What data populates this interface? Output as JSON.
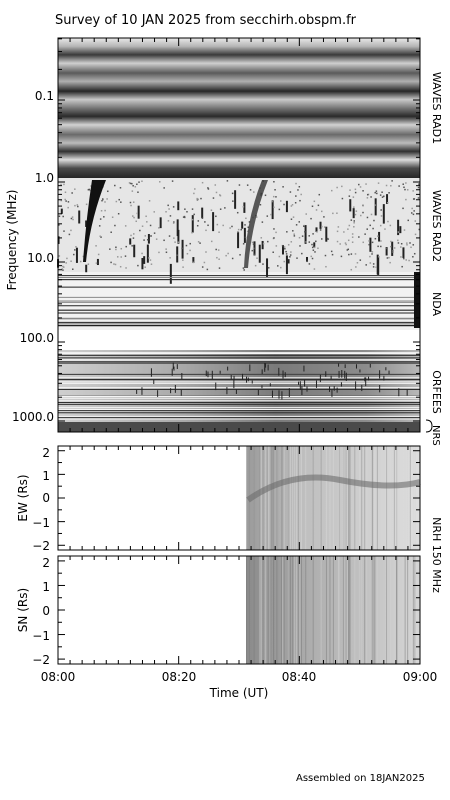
{
  "chart_data": {
    "type": "heatmap",
    "title": "Survey of 10 JAN 2025 from secchirh.obspm.fr",
    "footer": "Assembled on 18JAN2025",
    "xlabel": "Time (UT)",
    "x_ticks": [
      "08:00",
      "08:20",
      "08:40",
      "09:00"
    ],
    "x_range": [
      "08:00",
      "09:00"
    ],
    "spectrogram": {
      "ylabel": "Frequency (MHz)",
      "scale": "log",
      "y_ticks": [
        "0.1",
        "1.0",
        "10.0",
        "100.0",
        "1000.0"
      ],
      "panels": [
        {
          "name": "WAVES RAD1",
          "range_mhz": [
            0.02,
            1.0
          ]
        },
        {
          "name": "WAVES RAD2",
          "range_mhz": [
            1.0,
            14.0
          ]
        },
        {
          "name": "NDA",
          "range_mhz": [
            14.0,
            80.0
          ]
        },
        {
          "name": "ORFEES",
          "range_mhz": [
            144.0,
            1000.0
          ]
        },
        {
          "name": "NRS",
          "range_mhz": [
            1000.0,
            1500.0
          ]
        }
      ]
    },
    "positions": {
      "instrument": "NRH 150 MHz",
      "y_ticks": [
        "2",
        "1",
        "0",
        "−1",
        "−2"
      ],
      "data_start": "08:30",
      "panels": [
        {
          "ylabel": "EW (Rs)",
          "range": [
            -2.2,
            2.2
          ]
        },
        {
          "ylabel": "SN (Rs)",
          "range": [
            -2.2,
            2.2
          ]
        }
      ]
    }
  }
}
